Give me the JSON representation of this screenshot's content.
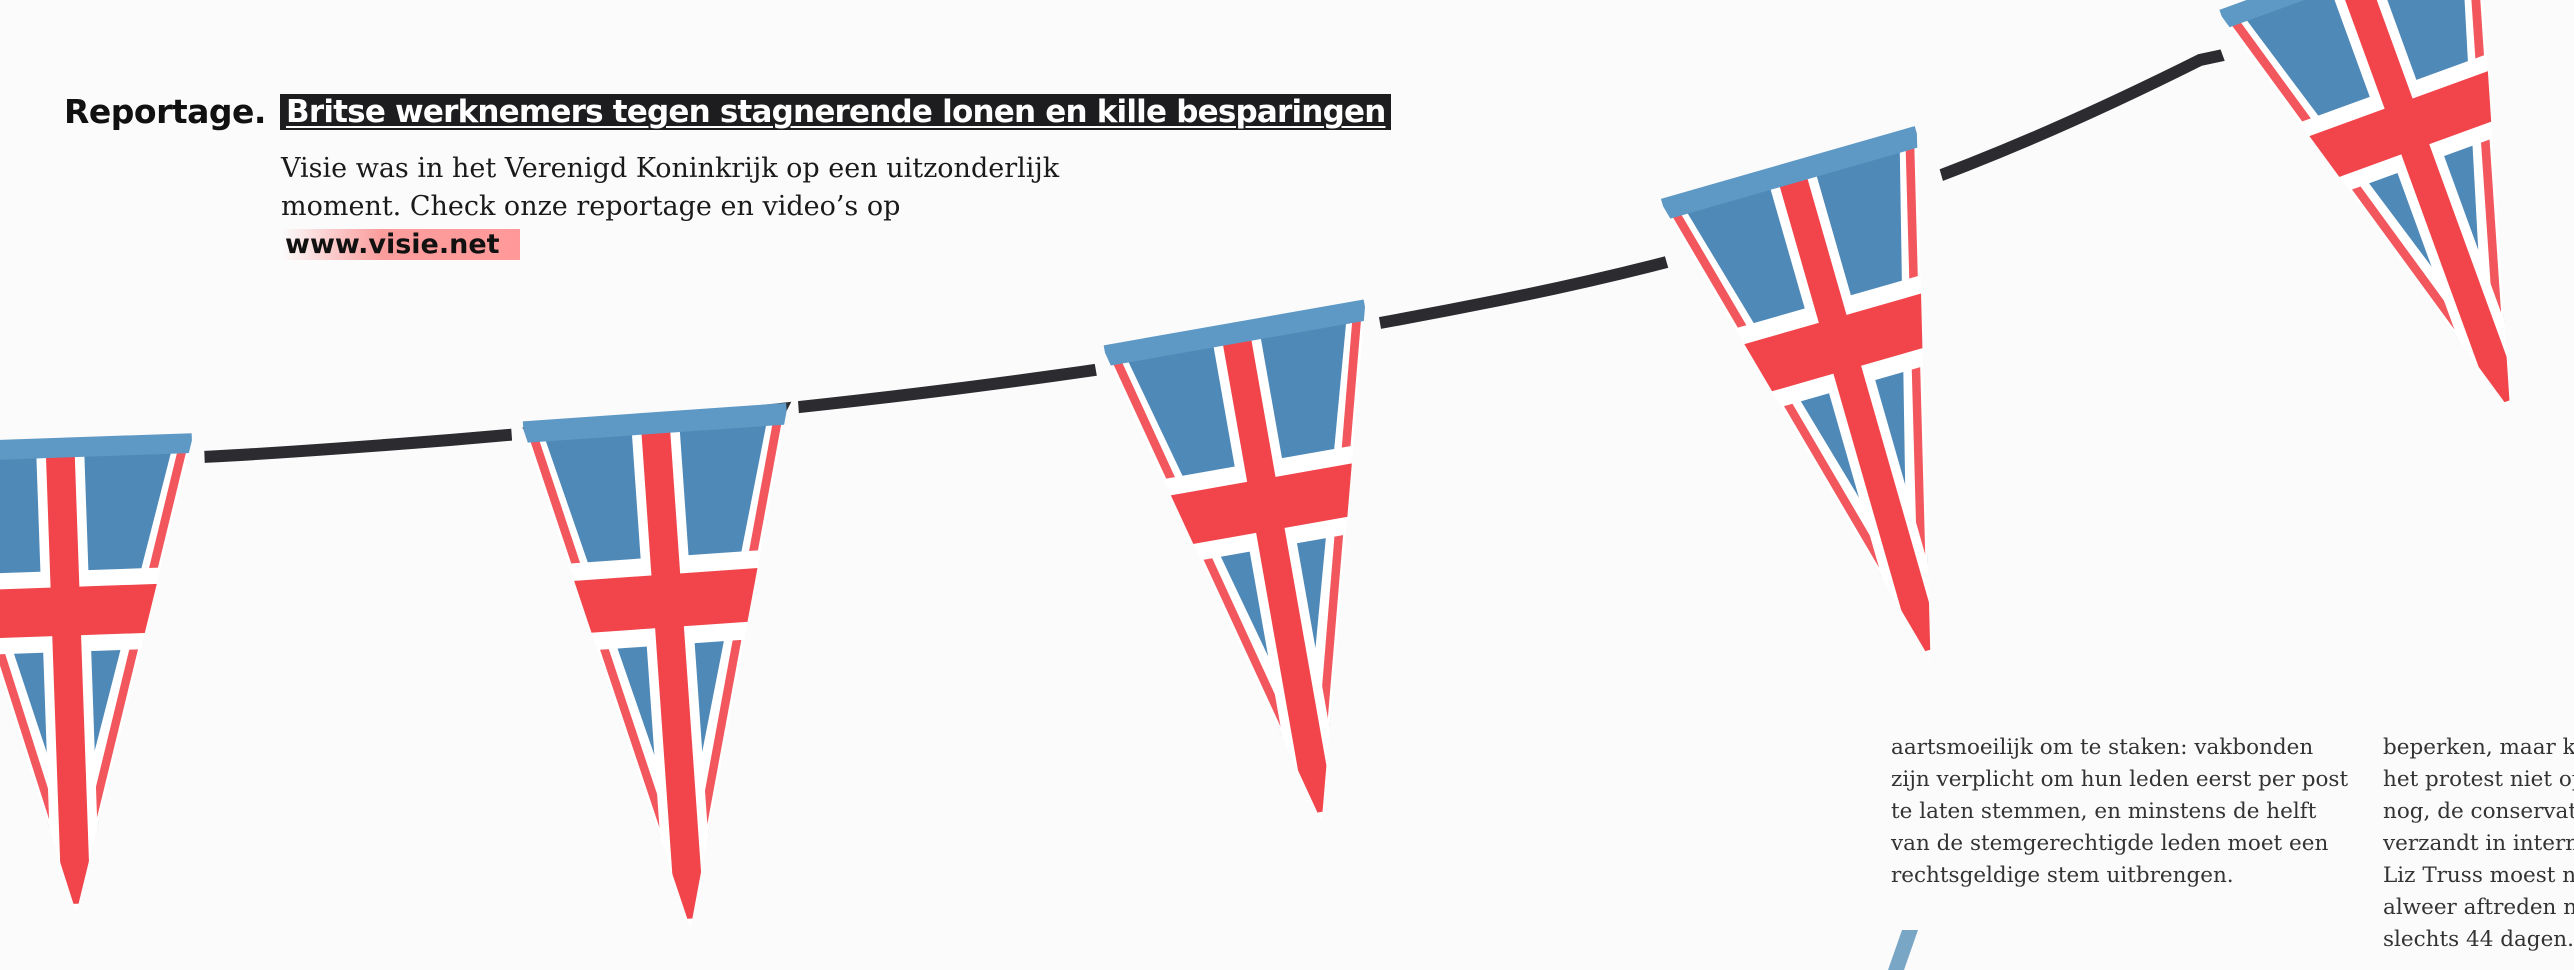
{
  "header": {
    "kicker": "Reportage.",
    "headline": "Britse werknemers tegen stagnerende lonen en kille besparingen",
    "intro_text": "Visie was in het Verenigd Koninkrijk op een uitzonderlijk moment. Check onze reportage en video’s op ",
    "intro_url": "www.visie.net"
  },
  "illustration": {
    "name": "union-jack-bunting",
    "colors": {
      "blue": "#4f89b8",
      "red": "#f1454b",
      "white": "#ffffff",
      "string": "#2c2c30"
    }
  },
  "columns": [
    {
      "lines": [
        "aartsmoeilijk om te staken: vakbonden",
        "zijn verplicht om hun leden eerst per post",
        "te laten stemmen, en minstens de helft",
        "van de stemgerechtigde leden moet een",
        "rechtsgeldige stem uitbrengen."
      ]
    },
    {
      "lines": [
        "beperken, maar kr",
        "het protest niet op",
        "nog, de conservat",
        "verzandt in intern",
        "Liz Truss moest n",
        "alweer aftreden n",
        "slechts 44 dagen."
      ]
    }
  ]
}
